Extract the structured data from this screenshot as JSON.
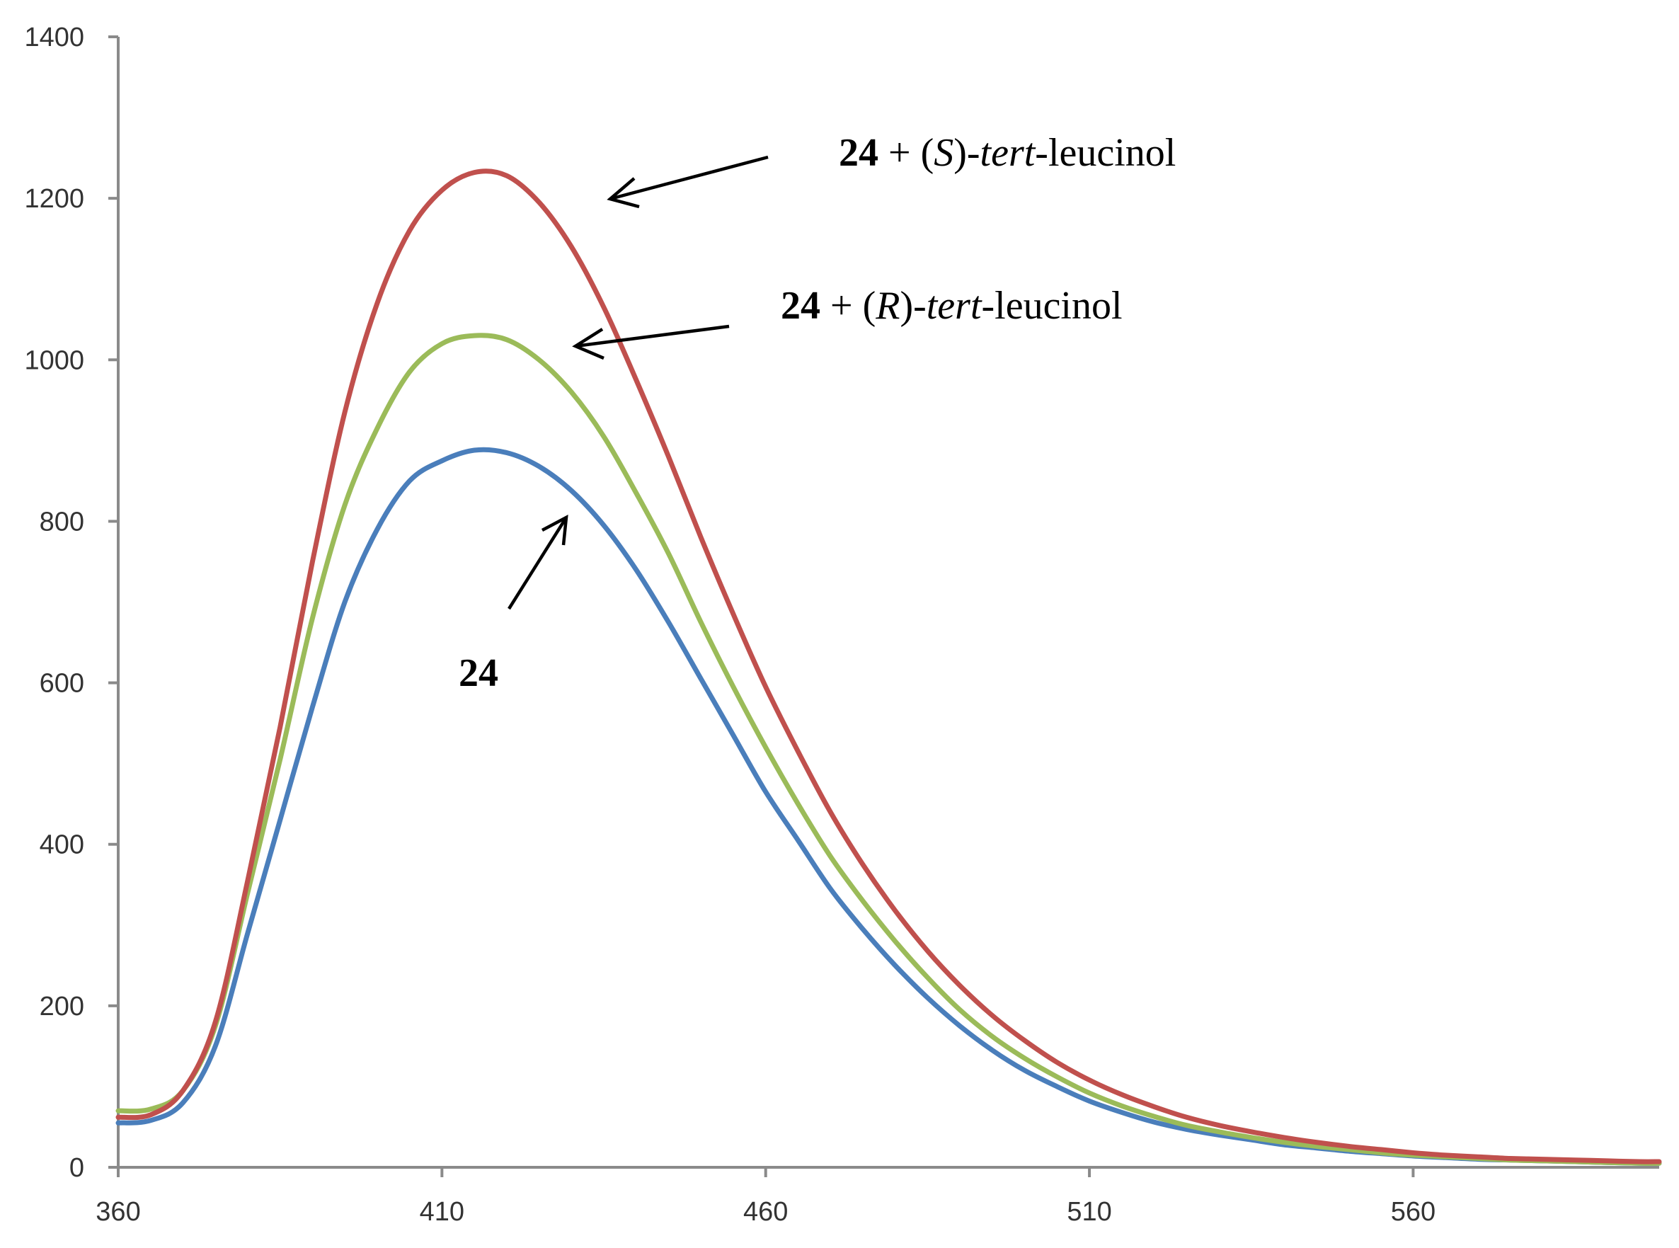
{
  "chart_data": {
    "type": "line",
    "title": "",
    "xlabel": "",
    "ylabel": "",
    "xlim": [
      360,
      598
    ],
    "ylim": [
      0,
      1400
    ],
    "x_ticks": [
      360,
      410,
      460,
      510,
      560
    ],
    "y_ticks": [
      0,
      200,
      400,
      600,
      800,
      1000,
      1200,
      1400
    ],
    "grid": false,
    "legend": "none",
    "series": [
      {
        "name": "24",
        "color": "#4a7ebb",
        "x": [
          360,
          365,
          370,
          375,
          380,
          385,
          390,
          395,
          400,
          405,
          410,
          415,
          420,
          425,
          430,
          435,
          440,
          445,
          450,
          455,
          460,
          465,
          470,
          475,
          480,
          485,
          490,
          495,
          500,
          505,
          510,
          515,
          520,
          525,
          530,
          535,
          540,
          545,
          550,
          555,
          560,
          565,
          570,
          575,
          580,
          585,
          590,
          595,
          598
        ],
        "y": [
          55,
          58,
          80,
          150,
          290,
          430,
          570,
          700,
          790,
          850,
          875,
          888,
          885,
          868,
          838,
          795,
          740,
          675,
          605,
          535,
          465,
          405,
          345,
          295,
          250,
          210,
          175,
          145,
          120,
          100,
          82,
          68,
          56,
          47,
          40,
          34,
          28,
          24,
          20,
          17,
          14,
          12,
          10,
          9,
          8,
          7,
          6,
          5,
          5
        ]
      },
      {
        "name": "24 + (R)-tert-leucinol",
        "color": "#9bbb59",
        "x": [
          360,
          365,
          370,
          375,
          380,
          385,
          390,
          395,
          400,
          405,
          410,
          415,
          420,
          425,
          430,
          435,
          440,
          445,
          450,
          455,
          460,
          465,
          470,
          475,
          480,
          485,
          490,
          495,
          500,
          505,
          510,
          515,
          520,
          525,
          530,
          535,
          540,
          545,
          550,
          555,
          560,
          565,
          570,
          575,
          580,
          585,
          590,
          595,
          598
        ],
        "y": [
          70,
          72,
          95,
          175,
          340,
          505,
          680,
          820,
          915,
          985,
          1020,
          1030,
          1025,
          1000,
          960,
          905,
          835,
          760,
          675,
          595,
          520,
          450,
          385,
          330,
          280,
          235,
          195,
          162,
          135,
          112,
          92,
          76,
          63,
          52,
          44,
          37,
          31,
          26,
          22,
          18,
          15,
          13,
          11,
          9,
          8,
          7,
          6,
          5,
          5
        ]
      },
      {
        "name": "24 + (S)-tert-leucinol",
        "color": "#c0504d",
        "x": [
          360,
          365,
          370,
          375,
          380,
          385,
          390,
          395,
          400,
          405,
          410,
          415,
          420,
          425,
          430,
          435,
          440,
          445,
          450,
          455,
          460,
          465,
          470,
          475,
          480,
          485,
          490,
          495,
          500,
          505,
          510,
          515,
          520,
          525,
          530,
          535,
          540,
          545,
          550,
          555,
          560,
          565,
          570,
          575,
          580,
          585,
          590,
          595,
          598
        ],
        "y": [
          62,
          65,
          95,
          180,
          355,
          545,
          750,
          935,
          1070,
          1160,
          1210,
          1232,
          1228,
          1195,
          1140,
          1065,
          975,
          880,
          780,
          685,
          595,
          515,
          440,
          375,
          318,
          268,
          225,
          188,
          157,
          130,
          108,
          90,
          75,
          62,
          52,
          44,
          37,
          31,
          26,
          22,
          18,
          15,
          13,
          11,
          10,
          9,
          8,
          7,
          7
        ]
      }
    ],
    "annotations": [
      {
        "id": "s",
        "bold": "24",
        "plus": " + (",
        "italic1": "S",
        "mid": ")-",
        "italic2": "tert",
        "rest": "-leucinol"
      },
      {
        "id": "r",
        "bold": "24",
        "plus": " + (",
        "italic1": "R",
        "mid": ")-",
        "italic2": "tert",
        "rest": "-leucinol"
      },
      {
        "id": "base",
        "bold": "24"
      }
    ]
  }
}
